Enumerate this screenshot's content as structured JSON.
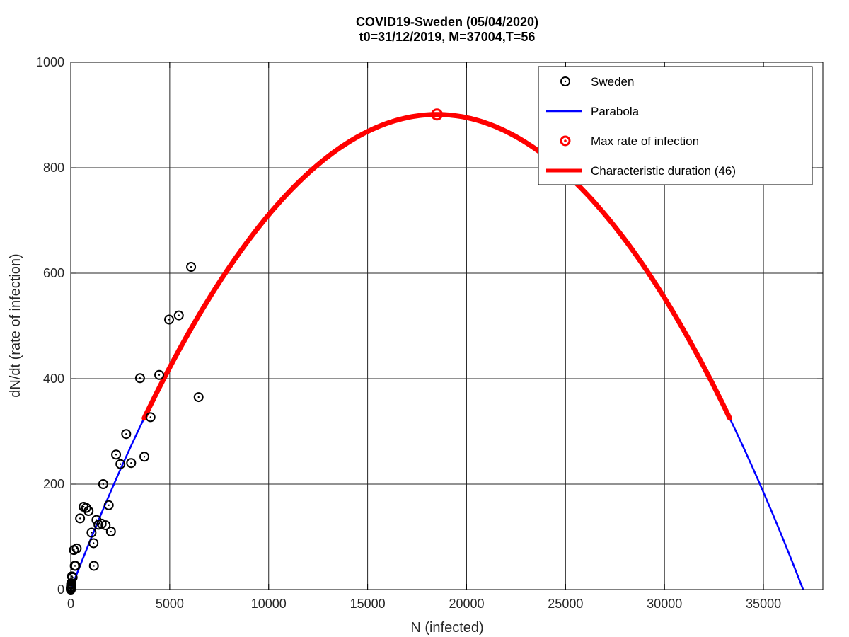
{
  "chart_data": {
    "type": "scatter",
    "title_line1": "COVID19-Sweden (05/04/2020)",
    "title_line2": "t0=31/12/2019, M=37004,T=56",
    "xlabel": "N (infected)",
    "ylabel": "dN/dt (rate of infection)",
    "xlim": [
      0,
      38000
    ],
    "ylim": [
      0,
      1000
    ],
    "xticks": [
      0,
      5000,
      10000,
      15000,
      20000,
      25000,
      30000,
      35000
    ],
    "yticks": [
      0,
      200,
      400,
      600,
      800,
      1000
    ],
    "grid": true,
    "legend_position": "top-right",
    "legend": [
      {
        "label": "Sweden",
        "kind": "marker-circle",
        "color": "#000000"
      },
      {
        "label": "Parabola",
        "kind": "line",
        "color": "#0000ff"
      },
      {
        "label": "Max rate of infection",
        "kind": "marker-circle",
        "color": "#ff0000"
      },
      {
        "label": "Characteristic duration (46)",
        "kind": "thick-line",
        "color": "#ff0000"
      }
    ],
    "series": [
      {
        "name": "Sweden",
        "kind": "scatter",
        "color": "#000000",
        "points": [
          [
            1,
            1
          ],
          [
            2,
            0
          ],
          [
            5,
            3
          ],
          [
            8,
            5
          ],
          [
            10,
            3
          ],
          [
            15,
            7
          ],
          [
            20,
            10
          ],
          [
            25,
            12
          ],
          [
            60,
            25
          ],
          [
            95,
            23
          ],
          [
            160,
            75
          ],
          [
            200,
            45
          ],
          [
            240,
            45
          ],
          [
            300,
            78
          ],
          [
            470,
            135
          ],
          [
            650,
            157
          ],
          [
            780,
            155
          ],
          [
            900,
            149
          ],
          [
            1050,
            108
          ],
          [
            1150,
            88
          ],
          [
            1170,
            45
          ],
          [
            1300,
            132
          ],
          [
            1400,
            123
          ],
          [
            1560,
            125
          ],
          [
            1640,
            200
          ],
          [
            1760,
            122
          ],
          [
            1920,
            160
          ],
          [
            2030,
            110
          ],
          [
            2290,
            256
          ],
          [
            2510,
            238
          ],
          [
            2800,
            295
          ],
          [
            3050,
            240
          ],
          [
            3720,
            252
          ],
          [
            3500,
            401
          ],
          [
            4030,
            327
          ],
          [
            4470,
            407
          ],
          [
            4970,
            512
          ],
          [
            5460,
            520
          ],
          [
            6080,
            612
          ],
          [
            6460,
            365
          ]
        ]
      },
      {
        "name": "Parabola",
        "kind": "parabola",
        "color": "#0000ff",
        "M": 37004,
        "peak": 901,
        "x_range": [
          0,
          37004
        ]
      },
      {
        "name": "Characteristic duration (46)",
        "kind": "parabola",
        "color": "#ff0000",
        "M": 37004,
        "peak": 901,
        "x_range": [
          3710,
          33294
        ]
      },
      {
        "name": "Max rate of infection",
        "kind": "point",
        "color": "#ff0000",
        "points": [
          [
            18502,
            901
          ]
        ]
      }
    ]
  }
}
